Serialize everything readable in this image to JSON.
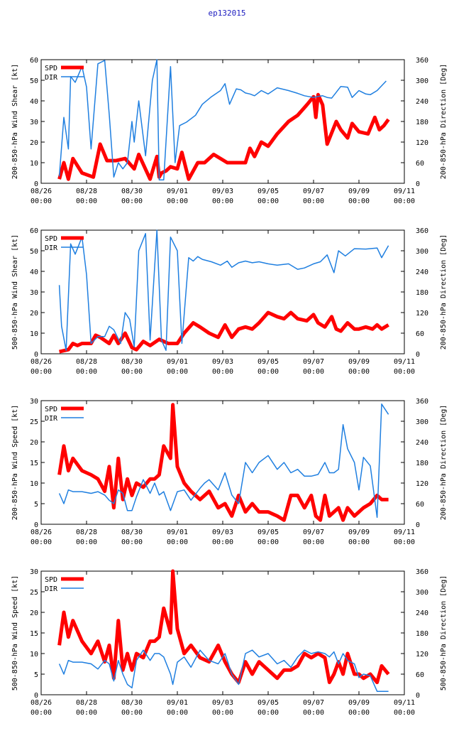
{
  "title": "ep132015",
  "colors": {
    "spd": "#ff0000",
    "dir": "#1f7fe0"
  },
  "x_ticks": [
    {
      "date": "08/26",
      "time": "00:00",
      "day": 0
    },
    {
      "date": "08/28",
      "time": "00:00",
      "day": 2
    },
    {
      "date": "08/30",
      "time": "00:00",
      "day": 4
    },
    {
      "date": "09/01",
      "time": "00:00",
      "day": 6
    },
    {
      "date": "09/03",
      "time": "00:00",
      "day": 8
    },
    {
      "date": "09/05",
      "time": "00:00",
      "day": 10
    },
    {
      "date": "09/07",
      "time": "00:00",
      "day": 12
    },
    {
      "date": "09/09",
      "time": "00:00",
      "day": 14
    },
    {
      "date": "09/11",
      "time": "00:00",
      "day": 16
    }
  ],
  "chart_data": [
    {
      "type": "line",
      "ylabel": "200-850-hPa Wind Shear [kt]",
      "y2label": "200-850-hPa Direction [Deg]",
      "xlim": [
        0,
        16
      ],
      "ylim": [
        0,
        60
      ],
      "y2lim": [
        0,
        360
      ],
      "yticks": [
        0,
        10,
        20,
        30,
        40,
        50,
        60
      ],
      "y2ticks": [
        0,
        60,
        120,
        180,
        240,
        300,
        360
      ],
      "legend": [
        "SPD",
        "DIR"
      ],
      "series": [
        {
          "name": "SPD",
          "axis": "left",
          "x": [
            0.8,
            1.0,
            1.2,
            1.4,
            1.8,
            2.3,
            2.6,
            2.9,
            3.3,
            3.7,
            4.1,
            4.3,
            4.8,
            5.1,
            5.2,
            5.3,
            5.5,
            5.7,
            6.0,
            6.2,
            6.5,
            6.9,
            7.2,
            7.6,
            8.2,
            8.7,
            9.0,
            9.2,
            9.4,
            9.7,
            10.0,
            10.4,
            10.9,
            11.3,
            11.7,
            12.0,
            12.1,
            12.2,
            12.4,
            12.6,
            13.0,
            13.2,
            13.5,
            13.7,
            14.0,
            14.4,
            14.7,
            14.9,
            15.1,
            15.3
          ],
          "y": [
            2,
            10,
            2,
            12,
            5,
            3,
            19,
            11,
            11,
            12,
            7,
            14,
            2,
            13,
            3,
            5,
            6,
            8,
            7,
            15,
            2,
            10,
            10,
            14,
            10,
            10,
            10,
            17,
            13,
            20,
            18,
            24,
            30,
            33,
            38,
            42,
            32,
            43,
            38,
            19,
            30,
            26,
            22,
            29,
            25,
            24,
            32,
            26,
            28,
            31
          ]
        },
        {
          "name": "DIR",
          "axis": "right",
          "x": [
            0.8,
            1.0,
            1.2,
            1.3,
            1.5,
            1.8,
            2.0,
            2.2,
            2.5,
            2.8,
            3.0,
            3.2,
            3.4,
            3.6,
            3.8,
            4.0,
            4.1,
            4.3,
            4.6,
            4.9,
            5.1,
            5.2,
            5.4,
            5.7,
            5.9,
            6.1,
            6.4,
            6.8,
            7.1,
            7.5,
            7.9,
            8.1,
            8.3,
            8.6,
            8.8,
            9.0,
            9.2,
            9.4,
            9.7,
            10.0,
            10.4,
            10.9,
            11.3,
            11.6,
            12.0,
            12.2,
            12.4,
            12.6,
            12.8,
            13.0,
            13.2,
            13.5,
            13.7,
            14.0,
            14.3,
            14.5,
            14.8,
            15.2
          ],
          "y": [
            20,
            192,
            100,
            311,
            294,
            340,
            280,
            100,
            348,
            358,
            200,
            18,
            60,
            42,
            60,
            180,
            120,
            240,
            80,
            300,
            360,
            10,
            10,
            340,
            60,
            168,
            178,
            198,
            230,
            252,
            270,
            290,
            230,
            275,
            272,
            263,
            260,
            255,
            270,
            260,
            278,
            270,
            262,
            255,
            250,
            253,
            255,
            250,
            248,
            265,
            282,
            280,
            250,
            270,
            260,
            258,
            270,
            298
          ]
        }
      ]
    },
    {
      "type": "line",
      "ylabel": "500-850-hPa Wind Shear [kt]",
      "y2label": "200-850-hPa Direction [Deg]",
      "xlim": [
        0,
        16
      ],
      "ylim": [
        0,
        60
      ],
      "y2lim": [
        0,
        360
      ],
      "yticks": [
        0,
        10,
        20,
        30,
        40,
        50,
        60
      ],
      "y2ticks": [
        0,
        60,
        120,
        180,
        240,
        300,
        360
      ],
      "legend": [
        "SPD",
        "DIR"
      ],
      "series": [
        {
          "name": "SPD",
          "axis": "left",
          "x": [
            0.8,
            1.2,
            1.4,
            1.6,
            1.8,
            2.2,
            2.4,
            2.6,
            3.0,
            3.2,
            3.4,
            3.7,
            4.0,
            4.2,
            4.5,
            4.8,
            5.2,
            5.6,
            6.0,
            6.3,
            6.7,
            7.0,
            7.4,
            7.8,
            8.1,
            8.4,
            8.7,
            9.0,
            9.3,
            9.6,
            10.0,
            10.4,
            10.7,
            11.0,
            11.3,
            11.7,
            12.0,
            12.2,
            12.5,
            12.8,
            13.0,
            13.2,
            13.5,
            13.8,
            14.0,
            14.3,
            14.6,
            14.8,
            15.0,
            15.3
          ],
          "y": [
            1,
            2,
            5,
            4,
            5,
            5,
            9,
            8,
            5,
            9,
            5,
            10,
            3,
            2,
            6,
            4,
            7,
            5,
            5,
            10,
            15,
            13,
            10,
            8,
            14,
            8,
            12,
            13,
            12,
            15,
            20,
            18,
            17,
            20,
            17,
            16,
            19,
            15,
            13,
            18,
            12,
            11,
            15,
            12,
            12,
            13,
            12,
            14,
            12,
            14
          ]
        },
        {
          "name": "DIR",
          "axis": "right",
          "x": [
            0.8,
            0.9,
            1.1,
            1.3,
            1.5,
            1.8,
            2.0,
            2.2,
            2.5,
            2.8,
            3.0,
            3.2,
            3.5,
            3.7,
            3.9,
            4.1,
            4.3,
            4.6,
            4.8,
            5.1,
            5.3,
            5.5,
            5.7,
            6.0,
            6.2,
            6.5,
            6.7,
            6.9,
            7.1,
            7.5,
            7.9,
            8.2,
            8.4,
            8.7,
            9.0,
            9.3,
            9.6,
            10.0,
            10.4,
            10.9,
            11.3,
            11.6,
            12.0,
            12.3,
            12.6,
            12.9,
            13.1,
            13.4,
            13.8,
            14.3,
            14.8,
            15.0,
            15.3
          ],
          "y": [
            200,
            80,
            10,
            320,
            290,
            340,
            230,
            30,
            50,
            50,
            80,
            70,
            30,
            120,
            100,
            20,
            300,
            350,
            40,
            360,
            40,
            10,
            340,
            300,
            30,
            280,
            270,
            283,
            275,
            268,
            258,
            270,
            252,
            265,
            270,
            265,
            268,
            262,
            258,
            262,
            246,
            250,
            262,
            268,
            288,
            236,
            300,
            285,
            306,
            305,
            308,
            280,
            315
          ]
        }
      ]
    },
    {
      "type": "line",
      "ylabel": "200-850-hPa Wind Speed [kt]",
      "y2label": "200-850-hPa Direction [Deg]",
      "xlim": [
        0,
        16
      ],
      "ylim": [
        0,
        30
      ],
      "y2lim": [
        0,
        360
      ],
      "yticks": [
        0,
        5,
        10,
        15,
        20,
        25,
        30
      ],
      "y2ticks": [
        0,
        60,
        120,
        180,
        240,
        300,
        360
      ],
      "legend": [
        "SPD",
        "DIR"
      ],
      "series": [
        {
          "name": "SPD",
          "axis": "left",
          "x": [
            0.8,
            1.0,
            1.2,
            1.4,
            1.8,
            2.2,
            2.5,
            2.8,
            3.0,
            3.2,
            3.4,
            3.6,
            3.8,
            4.0,
            4.2,
            4.5,
            4.8,
            5.0,
            5.2,
            5.4,
            5.7,
            5.8,
            6.0,
            6.3,
            6.6,
            7.0,
            7.4,
            7.8,
            8.1,
            8.4,
            8.7,
            9.0,
            9.3,
            9.6,
            10.0,
            10.4,
            10.7,
            11.0,
            11.3,
            11.6,
            11.9,
            12.1,
            12.3,
            12.5,
            12.7,
            12.9,
            13.1,
            13.3,
            13.5,
            13.8,
            14.0,
            14.2,
            14.5,
            14.8,
            15.0,
            15.3
          ],
          "y": [
            12,
            19,
            13,
            16,
            13,
            12,
            11,
            8,
            14,
            4,
            16,
            6,
            11,
            7,
            10,
            9,
            11,
            11,
            12,
            19,
            16,
            29,
            14,
            10,
            8,
            6,
            8,
            4,
            5,
            2,
            7,
            3,
            5,
            3,
            3,
            2,
            1,
            7,
            7,
            4,
            7,
            2,
            1,
            7,
            2,
            3,
            4,
            1,
            4,
            2,
            3,
            4,
            5,
            7,
            6,
            6
          ]
        },
        {
          "name": "DIR",
          "axis": "right",
          "x": [
            0.8,
            1.0,
            1.2,
            1.4,
            1.8,
            2.2,
            2.5,
            2.8,
            3.0,
            3.2,
            3.4,
            3.6,
            3.8,
            4.0,
            4.2,
            4.5,
            4.8,
            5.0,
            5.2,
            5.4,
            5.7,
            6.0,
            6.3,
            6.6,
            7.0,
            7.2,
            7.4,
            7.8,
            8.1,
            8.4,
            8.7,
            9.0,
            9.3,
            9.6,
            10.0,
            10.4,
            10.7,
            11.0,
            11.3,
            11.6,
            11.9,
            12.2,
            12.5,
            12.7,
            12.9,
            13.1,
            13.3,
            13.5,
            13.8,
            14.0,
            14.2,
            14.5,
            14.8,
            15.0,
            15.3
          ],
          "y": [
            90,
            60,
            100,
            95,
            95,
            90,
            95,
            85,
            70,
            60,
            100,
            90,
            40,
            40,
            80,
            130,
            90,
            120,
            85,
            95,
            40,
            95,
            100,
            70,
            105,
            120,
            130,
            100,
            150,
            85,
            60,
            180,
            150,
            180,
            200,
            160,
            180,
            150,
            160,
            140,
            140,
            145,
            180,
            150,
            150,
            160,
            290,
            220,
            180,
            100,
            195,
            170,
            20,
            350,
            320
          ]
        }
      ]
    },
    {
      "type": "line",
      "ylabel": "500-850-hPa Wind Speed [kt]",
      "y2label": "500-850-hPa Direction [Deg]",
      "xlim": [
        0,
        16
      ],
      "ylim": [
        0,
        30
      ],
      "y2lim": [
        0,
        360
      ],
      "yticks": [
        0,
        5,
        10,
        15,
        20,
        25,
        30
      ],
      "y2ticks": [
        0,
        60,
        120,
        180,
        240,
        300,
        360
      ],
      "legend": [
        "SPD",
        "DIR"
      ],
      "series": [
        {
          "name": "SPD",
          "axis": "left",
          "x": [
            0.8,
            1.0,
            1.2,
            1.4,
            1.8,
            2.2,
            2.5,
            2.8,
            3.0,
            3.2,
            3.4,
            3.6,
            3.8,
            4.0,
            4.2,
            4.5,
            4.8,
            5.0,
            5.2,
            5.4,
            5.7,
            5.8,
            6.0,
            6.3,
            6.6,
            7.0,
            7.4,
            7.8,
            8.1,
            8.4,
            8.7,
            9.0,
            9.3,
            9.6,
            10.0,
            10.4,
            10.7,
            11.0,
            11.3,
            11.6,
            11.9,
            12.2,
            12.5,
            12.7,
            12.9,
            13.1,
            13.3,
            13.5,
            13.8,
            14.0,
            14.2,
            14.5,
            14.8,
            15.0,
            15.3
          ],
          "y": [
            12,
            20,
            14,
            18,
            13,
            10,
            13,
            8,
            12,
            4,
            18,
            6,
            10,
            6,
            10,
            9,
            13,
            13,
            14,
            21,
            15,
            30,
            16,
            10,
            12,
            9,
            8,
            12,
            8,
            5,
            3,
            8,
            5,
            8,
            6,
            4,
            6,
            6,
            7,
            10,
            9,
            10,
            9,
            3,
            5,
            8,
            5,
            10,
            5,
            5,
            4,
            5,
            3,
            7,
            5
          ]
        },
        {
          "name": "DIR",
          "axis": "right",
          "x": [
            0.8,
            1.0,
            1.2,
            1.4,
            1.8,
            2.2,
            2.5,
            2.8,
            3.0,
            3.2,
            3.4,
            3.6,
            3.8,
            4.0,
            4.2,
            4.5,
            4.8,
            5.0,
            5.2,
            5.4,
            5.7,
            5.8,
            6.0,
            6.3,
            6.6,
            7.0,
            7.4,
            7.8,
            8.1,
            8.4,
            8.7,
            9.0,
            9.3,
            9.6,
            10.0,
            10.4,
            10.7,
            11.0,
            11.3,
            11.6,
            11.9,
            12.2,
            12.5,
            12.7,
            12.9,
            13.1,
            13.3,
            13.5,
            13.8,
            14.0,
            14.2,
            14.5,
            14.8,
            15.0,
            15.3
          ],
          "y": [
            90,
            60,
            100,
            95,
            95,
            90,
            75,
            100,
            90,
            40,
            100,
            60,
            30,
            20,
            100,
            130,
            100,
            120,
            120,
            110,
            60,
            30,
            95,
            110,
            80,
            130,
            100,
            90,
            120,
            60,
            30,
            120,
            130,
            110,
            120,
            90,
            100,
            80,
            110,
            130,
            120,
            125,
            120,
            110,
            125,
            90,
            120,
            100,
            90,
            50,
            60,
            55,
            10,
            10,
            10
          ]
        }
      ]
    }
  ]
}
